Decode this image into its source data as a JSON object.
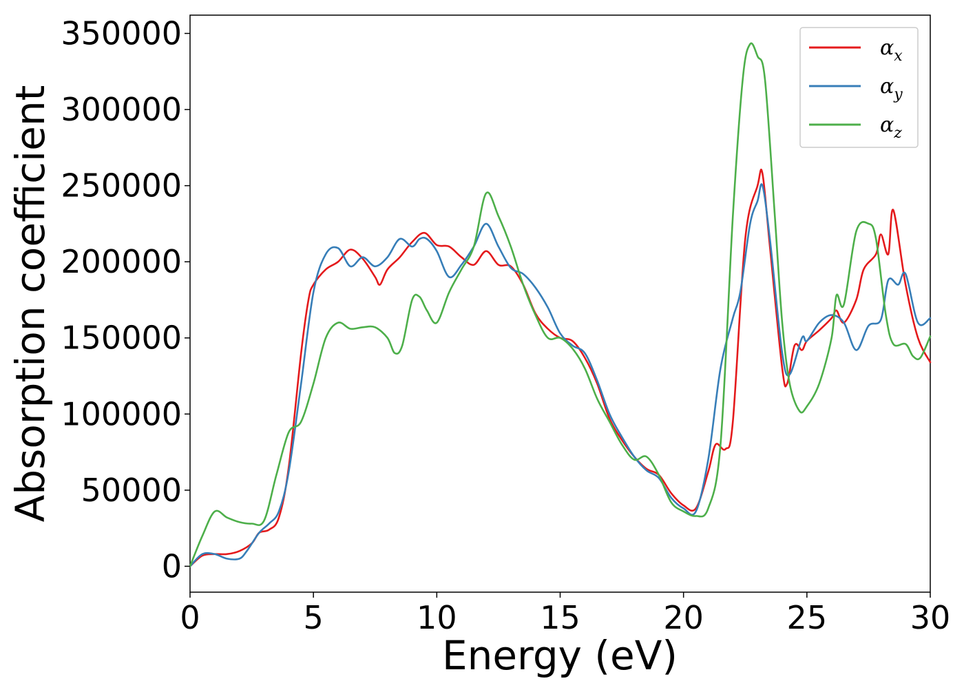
{
  "chart_data": {
    "type": "line",
    "title": "",
    "xlabel": "Energy (eV)",
    "ylabel": "Absorption coefficient",
    "xlim": [
      0,
      30
    ],
    "ylim": [
      -17000,
      362000
    ],
    "xticks": [
      0,
      5,
      10,
      15,
      20,
      25,
      30
    ],
    "xtick_labels": [
      "0",
      "5",
      "10",
      "15",
      "20",
      "25",
      "30"
    ],
    "yticks": [
      0,
      50000,
      100000,
      150000,
      200000,
      250000,
      300000,
      350000
    ],
    "ytick_labels": [
      "0",
      "50000",
      "100000",
      "150000",
      "200000",
      "250000",
      "300000",
      "350000"
    ],
    "grid": false,
    "legend_position": "top-right",
    "series": [
      {
        "name": "α_x",
        "label_base": "α",
        "label_sub": "x",
        "color": "#e41a1c",
        "x": [
          0,
          0.5,
          1,
          1.5,
          2,
          2.5,
          2.8,
          3.2,
          3.6,
          4,
          4.5,
          4.8,
          5,
          5.5,
          6,
          6.5,
          7,
          7.5,
          7.7,
          8,
          8.5,
          9,
          9.5,
          10,
          10.5,
          11,
          11.5,
          12,
          12.5,
          13,
          13.5,
          14,
          14.5,
          15,
          15.5,
          16,
          16.5,
          17,
          17.5,
          18,
          18.5,
          19,
          19.5,
          20,
          20.5,
          21,
          21.3,
          21.7,
          22,
          22.5,
          23,
          23.2,
          23.5,
          24,
          24.2,
          24.5,
          24.8,
          25,
          25.5,
          26,
          26.2,
          26.5,
          27,
          27.3,
          27.8,
          28,
          28.3,
          28.5,
          29,
          29.5,
          30
        ],
        "y": [
          0,
          7000,
          8000,
          8000,
          10000,
          15000,
          22000,
          24000,
          32000,
          65000,
          140000,
          175000,
          185000,
          195000,
          200000,
          208000,
          202000,
          190000,
          185000,
          195000,
          203000,
          213000,
          219000,
          211000,
          210000,
          203000,
          198000,
          207000,
          198000,
          197000,
          185000,
          166000,
          156000,
          150000,
          148000,
          137000,
          120000,
          97000,
          83000,
          72000,
          64000,
          60000,
          48000,
          40000,
          38000,
          62000,
          80000,
          77000,
          95000,
          215000,
          250000,
          258000,
          210000,
          130000,
          120000,
          145000,
          142000,
          148000,
          155000,
          163000,
          168000,
          160000,
          175000,
          195000,
          205000,
          218000,
          205000,
          234000,
          185000,
          150000,
          134000
        ]
      },
      {
        "name": "α_y",
        "label_base": "α",
        "label_sub": "y",
        "color": "#377eb8",
        "x": [
          0,
          0.5,
          1,
          1.5,
          2,
          2.3,
          2.8,
          3.2,
          3.6,
          4,
          4.5,
          5,
          5.5,
          6,
          6.5,
          7,
          7.5,
          8,
          8.5,
          9,
          9.3,
          9.6,
          10,
          10.5,
          11,
          11.5,
          12,
          12.5,
          13,
          13.5,
          14,
          14.5,
          15,
          15.5,
          16,
          16.5,
          17,
          17.5,
          18,
          18.5,
          19,
          19.5,
          20,
          20.5,
          21,
          21.5,
          22,
          22.3,
          22.7,
          23,
          23.2,
          23.5,
          24,
          24.3,
          24.8,
          25,
          25.5,
          26,
          26.5,
          27,
          27.5,
          28,
          28.3,
          28.7,
          29,
          29.5,
          30
        ],
        "y": [
          0,
          8000,
          8000,
          5000,
          5000,
          10000,
          22000,
          28000,
          36000,
          62000,
          120000,
          180000,
          205000,
          209000,
          197000,
          203000,
          197000,
          203000,
          215000,
          210000,
          215000,
          215000,
          207000,
          190000,
          198000,
          210000,
          225000,
          210000,
          196000,
          192000,
          183000,
          170000,
          153000,
          145000,
          140000,
          122000,
          100000,
          85000,
          72000,
          63000,
          58000,
          45000,
          38000,
          36000,
          70000,
          130000,
          163000,
          180000,
          225000,
          240000,
          250000,
          215000,
          140000,
          126000,
          150000,
          148000,
          160000,
          165000,
          160000,
          142000,
          158000,
          162000,
          188000,
          185000,
          192000,
          160000,
          163000
        ]
      },
      {
        "name": "α_z",
        "label_base": "α",
        "label_sub": "z",
        "color": "#4daf4a",
        "x": [
          0,
          0.5,
          1,
          1.5,
          2,
          2.5,
          3,
          3.5,
          4,
          4.5,
          5,
          5.5,
          6,
          6.5,
          7,
          7.5,
          8,
          8.3,
          8.6,
          9,
          9.3,
          9.6,
          10,
          10.5,
          11,
          11.5,
          12,
          12.5,
          13,
          13.5,
          14,
          14.5,
          15,
          15.5,
          16,
          16.5,
          17,
          17.5,
          18,
          18.5,
          19,
          19.5,
          20,
          20.5,
          21,
          21.5,
          22,
          22.4,
          22.7,
          23,
          23.3,
          23.7,
          24,
          24.3,
          24.7,
          25,
          25.5,
          26,
          26.2,
          26.5,
          27,
          27.5,
          27.8,
          28.2,
          28.5,
          29,
          29.3,
          29.6,
          30
        ],
        "y": [
          0,
          20000,
          36000,
          32000,
          29000,
          28000,
          30000,
          60000,
          88000,
          95000,
          120000,
          150000,
          160000,
          156000,
          157000,
          157000,
          150000,
          140000,
          145000,
          175000,
          177000,
          168000,
          160000,
          180000,
          195000,
          210000,
          245000,
          230000,
          210000,
          185000,
          165000,
          150000,
          150000,
          143000,
          130000,
          110000,
          95000,
          80000,
          70000,
          72000,
          60000,
          42000,
          36000,
          33000,
          38000,
          80000,
          230000,
          320000,
          343000,
          335000,
          320000,
          230000,
          160000,
          120000,
          102000,
          105000,
          120000,
          150000,
          178000,
          172000,
          220000,
          225000,
          215000,
          165000,
          146000,
          146000,
          138000,
          137000,
          151000
        ]
      }
    ]
  }
}
